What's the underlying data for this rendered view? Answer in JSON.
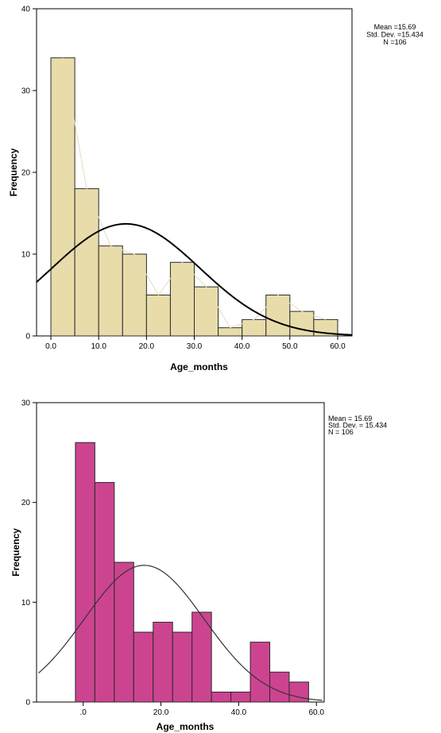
{
  "chart_data": [
    {
      "type": "bar",
      "subtype": "histogram",
      "xlabel": "Age_months",
      "ylabel": "Frequency",
      "x_tick_labels": [
        "0.0",
        "10.0",
        "20.0",
        "30.0",
        "40.0",
        "50.0",
        "60.0"
      ],
      "x_ticks": [
        0,
        10,
        20,
        30,
        40,
        50,
        60
      ],
      "y_ticks": [
        0,
        10,
        20,
        30,
        40
      ],
      "xlim": [
        -3,
        63
      ],
      "ylim": [
        0,
        40
      ],
      "bin_edges": [
        0,
        5,
        10,
        15,
        20,
        25,
        30,
        35,
        40,
        45,
        50,
        55,
        60
      ],
      "values": [
        34,
        18,
        11,
        10,
        5,
        9,
        6,
        1,
        2,
        5,
        3,
        2
      ],
      "frequency_polygon": true,
      "normal_curve": {
        "mean": 15.69,
        "sd": 15.434,
        "n": 106
      },
      "stats_lines": [
        "Mean =15.69",
        "Std. Dev. =15.434",
        "N =106"
      ],
      "colors": {
        "bar": "#e8dcaa",
        "bar_edge": "#2b2b2b",
        "curve": "#000000",
        "polygon": "#e8dcb6",
        "plot_bg": "#ffffff"
      }
    },
    {
      "type": "bar",
      "subtype": "histogram",
      "xlabel": "Age_months",
      "ylabel": "Frequency",
      "x_tick_labels": [
        ".0",
        "20.0",
        "40.0",
        "60.0"
      ],
      "x_ticks": [
        0,
        20,
        40,
        60
      ],
      "y_ticks": [
        0,
        10,
        20,
        30
      ],
      "xlim": [
        -12,
        62
      ],
      "ylim": [
        0,
        30
      ],
      "bin_edges": [
        -2,
        3,
        8,
        13,
        18,
        23,
        28,
        33,
        38,
        43,
        48,
        53,
        58
      ],
      "values": [
        26,
        22,
        14,
        7,
        8,
        7,
        9,
        1,
        1,
        6,
        3,
        2
      ],
      "normal_curve": {
        "mean": 15.69,
        "sd": 15.434,
        "n": 106
      },
      "stats_lines": [
        "Mean = 15.69",
        "Std. Dev. = 15.434",
        "N = 106"
      ],
      "colors": {
        "bar": "#cc4490",
        "bar_edge": "#2b2b2b",
        "curve": "#333333",
        "plot_bg": "#ffffff"
      }
    }
  ]
}
